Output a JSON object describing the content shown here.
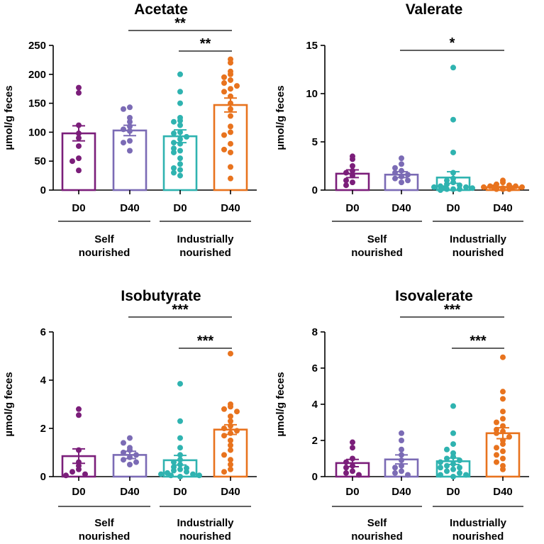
{
  "chart_data": [
    {
      "type": "bar",
      "title": "Acetate",
      "ylabel": "µmol/g feces",
      "ylim": [
        0,
        250
      ],
      "yticks": [
        0,
        50,
        100,
        150,
        200,
        250
      ],
      "categories": [
        "D0",
        "D40",
        "D0",
        "D40"
      ],
      "groups": [
        {
          "label_lines": [
            "Self",
            "nourished"
          ],
          "span": [
            0,
            1
          ]
        },
        {
          "label_lines": [
            "Industrially",
            "nourished"
          ],
          "span": [
            2,
            3
          ]
        }
      ],
      "colors": [
        "#7b1e7a",
        "#7b6bb5",
        "#2fb3b0",
        "#e8731e"
      ],
      "means": [
        98,
        103,
        93,
        147
      ],
      "sem": [
        13,
        9,
        11,
        12
      ],
      "points": [
        [
          177,
          168,
          112,
          98,
          90,
          76,
          55,
          50,
          34
        ],
        [
          143,
          140,
          125,
          118,
          110,
          105,
          102,
          85,
          82,
          68
        ],
        [
          200,
          170,
          150,
          125,
          120,
          118,
          112,
          100,
          98,
          92,
          88,
          82,
          80,
          72,
          68,
          65,
          55,
          45,
          38,
          35,
          30,
          25
        ],
        [
          226,
          220,
          205,
          200,
          195,
          190,
          185,
          180,
          175,
          170,
          162,
          150,
          140,
          128,
          110,
          100,
          95,
          80,
          70,
          65,
          40,
          20
        ]
      ],
      "significance": [
        {
          "from": 1,
          "to": 3,
          "label": "**",
          "level": 1
        },
        {
          "from": 2,
          "to": 3,
          "label": "**",
          "level": 0
        }
      ]
    },
    {
      "type": "bar",
      "title": "Valerate",
      "ylabel": "µmol/g feces",
      "ylim": [
        0,
        15
      ],
      "yticks": [
        0,
        5,
        10,
        15
      ],
      "categories": [
        "D0",
        "D40",
        "D0",
        "D40"
      ],
      "groups": [
        {
          "label_lines": [
            "Self",
            "nourished"
          ],
          "span": [
            0,
            1
          ]
        },
        {
          "label_lines": [
            "Industrially",
            "nourished"
          ],
          "span": [
            2,
            3
          ]
        }
      ],
      "colors": [
        "#7b1e7a",
        "#7b6bb5",
        "#2fb3b0",
        "#e8731e"
      ],
      "means": [
        1.7,
        1.6,
        1.3,
        0.3
      ],
      "sem": [
        0.4,
        0.3,
        0.6,
        0.05
      ],
      "points": [
        [
          3.5,
          3.2,
          2.5,
          2.0,
          1.8,
          1.5,
          1.0,
          0.8,
          0.5
        ],
        [
          3.3,
          2.7,
          2.3,
          2.0,
          1.8,
          1.6,
          1.4,
          1.2,
          1.0,
          0.8
        ],
        [
          12.7,
          7.3,
          3.9,
          1.8,
          1.2,
          1.0,
          0.8,
          0.6,
          0.5,
          0.4,
          0.3,
          0.3,
          0.2,
          0.2,
          0.1,
          0.1,
          0.1,
          0.0
        ],
        [
          1.0,
          0.8,
          0.6,
          0.5,
          0.4,
          0.4,
          0.3,
          0.3,
          0.3,
          0.2,
          0.2,
          0.2,
          0.1,
          0.1,
          0.1
        ]
      ],
      "significance": [
        {
          "from": 1,
          "to": 3,
          "label": "*",
          "level": 0
        }
      ]
    },
    {
      "type": "bar",
      "title": "Isobutyrate",
      "ylabel": "µmol/g feces",
      "ylim": [
        0,
        6
      ],
      "yticks": [
        0,
        2,
        4,
        6
      ],
      "categories": [
        "D0",
        "D40",
        "D0",
        "D40"
      ],
      "groups": [
        {
          "label_lines": [
            "Self",
            "nourished"
          ],
          "span": [
            0,
            1
          ]
        },
        {
          "label_lines": [
            "Industrially",
            "nourished"
          ],
          "span": [
            2,
            3
          ]
        }
      ],
      "colors": [
        "#7b1e7a",
        "#7b6bb5",
        "#2fb3b0",
        "#e8731e"
      ],
      "means": [
        0.85,
        0.9,
        0.68,
        1.95
      ],
      "sem": [
        0.3,
        0.15,
        0.2,
        0.2
      ],
      "points": [
        [
          2.8,
          2.55,
          1.1,
          0.6,
          0.45,
          0.3,
          0.2,
          0.1,
          0.05
        ],
        [
          1.6,
          1.4,
          1.2,
          1.1,
          1.0,
          0.9,
          0.8,
          0.7,
          0.6,
          0.5
        ],
        [
          3.85,
          2.3,
          1.6,
          1.2,
          0.9,
          0.7,
          0.6,
          0.5,
          0.4,
          0.35,
          0.3,
          0.25,
          0.2,
          0.15,
          0.1,
          0.1,
          0.05,
          0.05,
          0.0
        ],
        [
          5.1,
          3.0,
          2.9,
          2.8,
          2.7,
          2.5,
          2.3,
          2.1,
          2.0,
          1.9,
          1.8,
          1.7,
          1.5,
          1.3,
          1.1,
          0.9,
          0.7,
          0.5,
          0.3,
          0.2
        ]
      ],
      "significance": [
        {
          "from": 1,
          "to": 3,
          "label": "***",
          "level": 1
        },
        {
          "from": 2,
          "to": 3,
          "label": "***",
          "level": 0
        }
      ]
    },
    {
      "type": "bar",
      "title": "Isovalerate",
      "ylabel": "µmol/g feces",
      "ylim": [
        0,
        8
      ],
      "yticks": [
        0,
        2,
        4,
        6,
        8
      ],
      "categories": [
        "D0",
        "D40",
        "D0",
        "D40"
      ],
      "groups": [
        {
          "label_lines": [
            "Self",
            "nourished"
          ],
          "span": [
            0,
            1
          ]
        },
        {
          "label_lines": [
            "Industrially",
            "nourished"
          ],
          "span": [
            2,
            3
          ]
        }
      ],
      "colors": [
        "#7b1e7a",
        "#7b6bb5",
        "#2fb3b0",
        "#e8731e"
      ],
      "means": [
        0.75,
        0.95,
        0.85,
        2.4
      ],
      "sem": [
        0.2,
        0.25,
        0.18,
        0.3
      ],
      "points": [
        [
          1.9,
          1.6,
          1.0,
          0.8,
          0.6,
          0.5,
          0.3,
          0.2,
          0.1
        ],
        [
          2.4,
          2.0,
          1.5,
          1.2,
          0.9,
          0.6,
          0.5,
          0.3,
          0.2,
          0.1
        ],
        [
          3.9,
          2.4,
          1.8,
          1.5,
          1.3,
          1.1,
          1.0,
          0.9,
          0.8,
          0.7,
          0.6,
          0.5,
          0.5,
          0.4,
          0.3,
          0.2,
          0.1,
          0.1,
          0.0
        ],
        [
          6.6,
          4.7,
          4.3,
          3.6,
          3.2,
          3.0,
          2.8,
          2.6,
          2.5,
          2.4,
          2.2,
          2.0,
          1.8,
          1.6,
          1.4,
          1.2,
          1.0,
          0.8,
          0.6,
          0.4
        ]
      ],
      "significance": [
        {
          "from": 1,
          "to": 3,
          "label": "***",
          "level": 1
        },
        {
          "from": 2,
          "to": 3,
          "label": "***",
          "level": 0
        }
      ]
    }
  ]
}
